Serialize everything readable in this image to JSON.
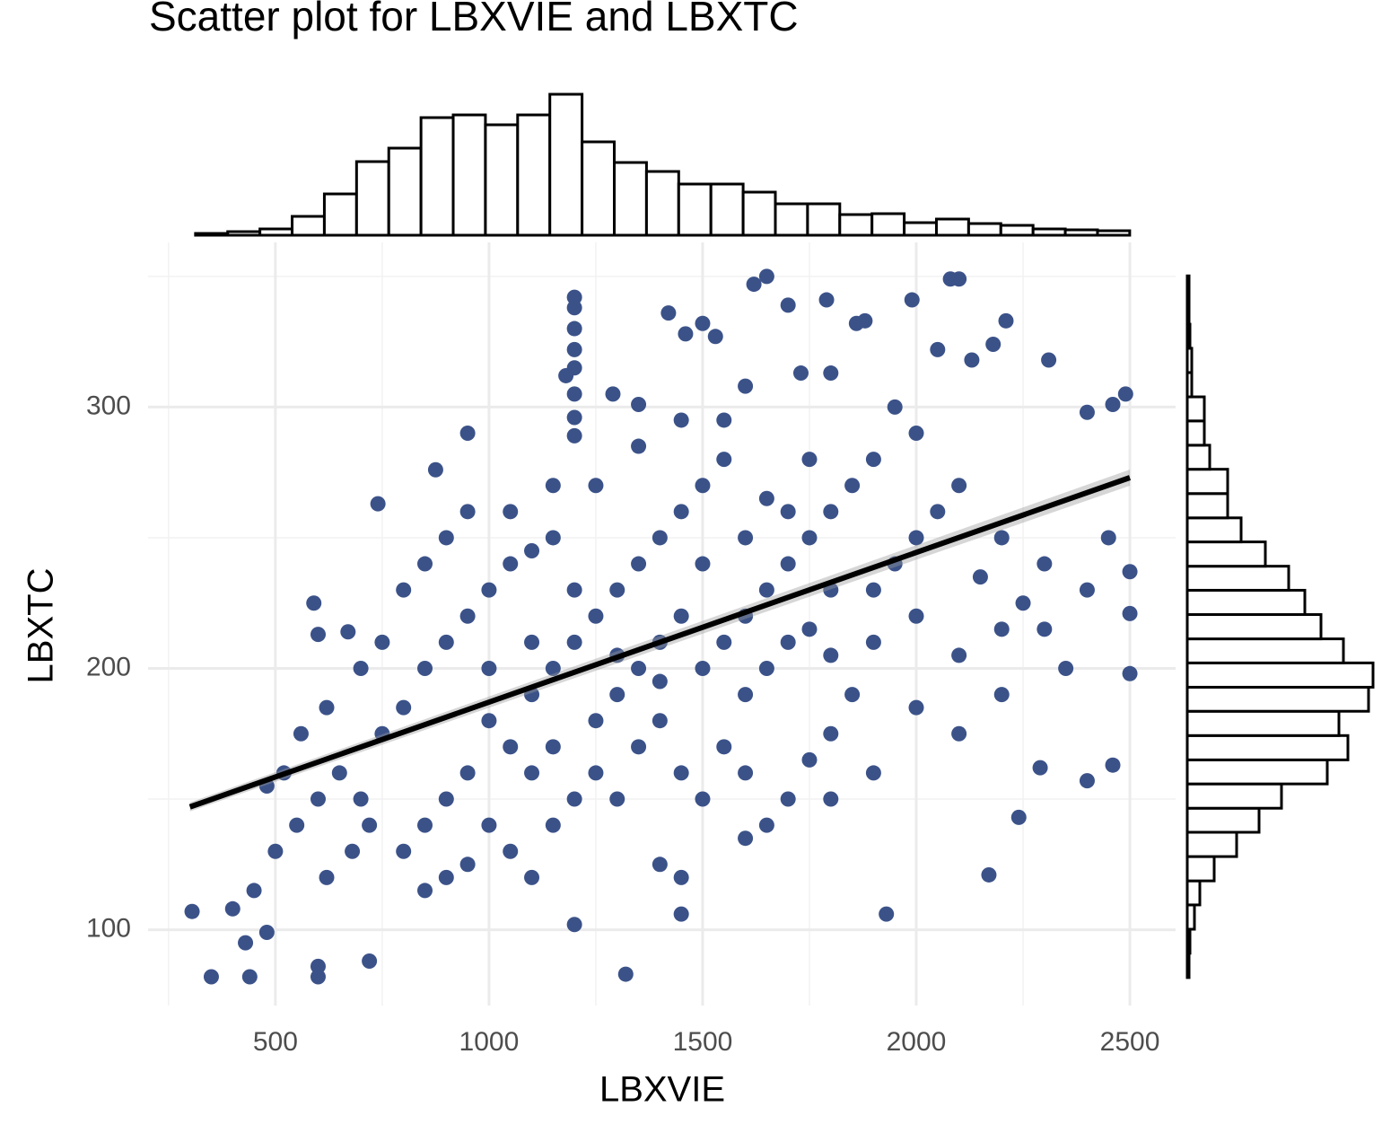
{
  "chart_data": {
    "type": "scatter",
    "title": "Scatter plot for LBXVIE and LBXTC",
    "x_label": "LBXVIE",
    "y_label": "LBXTC",
    "color": "#3b5289",
    "grid": true,
    "xlim": [
      202,
      2607
    ],
    "ylim": [
      71,
      363
    ],
    "xticks": [
      500,
      1000,
      1500,
      2000,
      2500
    ],
    "yticks": [
      100,
      200,
      300
    ],
    "x": [
      350,
      440,
      305,
      400,
      430,
      600,
      600,
      720,
      480,
      1320,
      1200,
      1450,
      1930,
      2170,
      2240,
      2290,
      2400,
      2460,
      2500,
      2500,
      2500,
      2490,
      2460,
      2400,
      1200,
      1200,
      1200,
      1200,
      1200,
      1200,
      1200,
      1200,
      1650,
      1620,
      1420,
      1500,
      2080,
      2100,
      1700,
      1790,
      1990,
      2210,
      1860,
      1880,
      1530,
      1460,
      2180,
      2050,
      2130,
      2310,
      1730,
      1800,
      1180,
      1290,
      740,
      590,
      600,
      670,
      950,
      875,
      1350,
      1600,
      1950,
      2000,
      650,
      700,
      720,
      680,
      620,
      750,
      800,
      850,
      900,
      950,
      1000,
      1050,
      1100,
      1150,
      1000,
      950,
      900,
      850,
      800,
      1050,
      1100,
      1150,
      1200,
      1250,
      1300,
      1350,
      1400,
      1450,
      1500,
      1550,
      1250,
      1300,
      1350,
      1400,
      1450,
      1500,
      1550,
      1600,
      1650,
      1700,
      1750,
      1800,
      1850,
      1900,
      1600,
      1650,
      1700,
      1750,
      1800,
      1850,
      1900,
      1950,
      2000,
      2050,
      2100,
      2150,
      2200,
      2250,
      2300,
      2350,
      1100,
      1150,
      1200,
      1250,
      1300,
      1350,
      1400,
      1450,
      1500,
      1550,
      1600,
      1650,
      1700,
      1750,
      1800,
      1900,
      2000,
      2100,
      2200,
      1000,
      1050,
      1100,
      1150,
      900,
      850,
      950,
      1400,
      1450,
      1600,
      1800,
      700,
      750,
      800,
      850,
      900,
      950,
      1050,
      1150,
      1250,
      1350,
      1450,
      1550,
      1650,
      1750,
      600,
      550,
      500,
      450,
      520,
      480,
      560,
      620,
      1000,
      1100,
      1200,
      1300,
      1400,
      1500,
      1600,
      1700,
      1800,
      1900,
      2000,
      2100,
      2200,
      2300,
      2400,
      2450
    ],
    "values": [
      82,
      82,
      107,
      108,
      95,
      82,
      86,
      88,
      99,
      83,
      102,
      106,
      106,
      121,
      143,
      162,
      157,
      163,
      198,
      221,
      237,
      305,
      301,
      298,
      342,
      338,
      330,
      322,
      315,
      305,
      296,
      289,
      350,
      347,
      336,
      332,
      349,
      349,
      339,
      341,
      341,
      333,
      332,
      333,
      327,
      328,
      324,
      322,
      318,
      318,
      313,
      313,
      312,
      305,
      263,
      225,
      213,
      214,
      290,
      276,
      301,
      308,
      300,
      290,
      160,
      150,
      140,
      130,
      120,
      175,
      185,
      200,
      210,
      220,
      230,
      240,
      245,
      250,
      180,
      160,
      150,
      140,
      130,
      170,
      190,
      200,
      210,
      220,
      230,
      240,
      250,
      260,
      270,
      280,
      180,
      190,
      200,
      210,
      220,
      200,
      210,
      220,
      230,
      240,
      250,
      260,
      270,
      280,
      190,
      200,
      210,
      215,
      205,
      190,
      230,
      240,
      250,
      260,
      270,
      235,
      250,
      225,
      215,
      200,
      160,
      170,
      150,
      160,
      150,
      170,
      180,
      160,
      150,
      170,
      160,
      140,
      150,
      165,
      175,
      160,
      185,
      175,
      190,
      140,
      130,
      120,
      140,
      120,
      115,
      125,
      125,
      120,
      135,
      150,
      200,
      210,
      230,
      240,
      250,
      260,
      260,
      270,
      270,
      285,
      295,
      295,
      265,
      280,
      150,
      140,
      130,
      115,
      160,
      155,
      175,
      185,
      200,
      210,
      230,
      205,
      195,
      240,
      250,
      260,
      230,
      210,
      220,
      205,
      215,
      240,
      230,
      250
    ],
    "fit": {
      "x": [
        300,
        2500
      ],
      "y": [
        147,
        273
      ]
    },
    "marginal_x": {
      "bins": [
        313.0,
        388.4,
        463.8,
        539.2,
        614.6,
        690.0,
        765.4,
        840.8,
        916.2,
        991.6,
        1067.0,
        1142.4,
        1217.8,
        1293.2,
        1368.6,
        1444.0,
        1519.4,
        1594.8,
        1670.2,
        1745.6,
        1821.0,
        1896.4,
        1971.8,
        2047.2,
        2122.6,
        2198.0,
        2273.4,
        2348.8,
        2424.2,
        2499.6
      ],
      "counts": [
        2,
        4,
        7,
        21,
        46,
        82,
        97,
        131,
        134,
        123,
        134,
        157,
        104,
        81,
        71,
        57,
        57,
        48,
        35,
        35,
        23,
        24,
        14,
        18,
        13,
        11,
        7,
        6,
        5
      ]
    },
    "marginal_y": {
      "bins": [
        81.7,
        91.0,
        100.2,
        109.5,
        118.7,
        128.0,
        137.3,
        146.5,
        155.8,
        165.0,
        174.3,
        183.6,
        192.8,
        202.1,
        211.3,
        220.6,
        229.9,
        239.1,
        248.4,
        257.6,
        266.9,
        276.2,
        285.4,
        294.7,
        303.9,
        313.2,
        322.5,
        331.7,
        341.0,
        350.2
      ],
      "counts": [
        2,
        3,
        8,
        14,
        30,
        55,
        80,
        105,
        156,
        179,
        169,
        202,
        207,
        174,
        149,
        131,
        113,
        87,
        60,
        45,
        45,
        25,
        19,
        19,
        5,
        5,
        3,
        2,
        2
      ]
    }
  }
}
